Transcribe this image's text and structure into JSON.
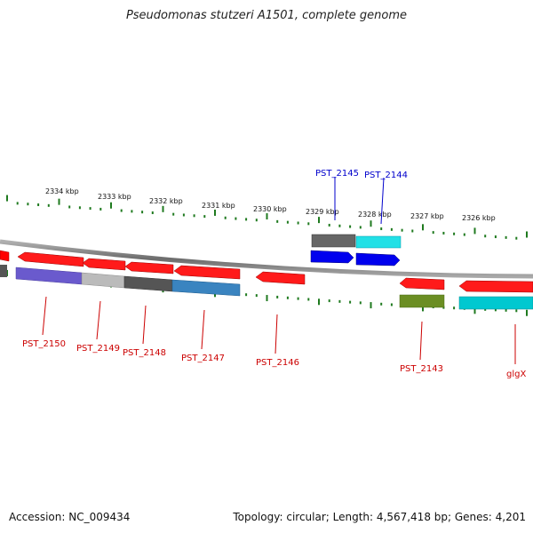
{
  "title": "Pseudomonas stutzeri A1501, complete genome",
  "footer": {
    "accession": "Accession: NC_009434",
    "summary": "Topology: circular; Length: 4,567,418 bp; Genes: 4,201"
  },
  "ruler": {
    "tick_color": "#1f7a1f",
    "labels": [
      "2334 kbp",
      "2333 kbp",
      "2332 kbp",
      "2331 kbp",
      "2330 kbp",
      "2329 kbp",
      "2328 kbp",
      "2327 kbp",
      "2326 kbp"
    ]
  },
  "genes_top": [
    {
      "label": "",
      "color": "#ff0000"
    },
    {
      "label": "",
      "color": "#ff0000"
    },
    {
      "label": "",
      "color": "#ff0000"
    },
    {
      "label": "",
      "color": "#ff0000"
    },
    {
      "label": "",
      "color": "#ff0000"
    },
    {
      "label": "",
      "color": "#ff0000"
    },
    {
      "label": "",
      "color": "#ff0000"
    },
    {
      "label": "",
      "color": "#ff0000"
    },
    {
      "label": "PST_2145",
      "color": "#0000ee"
    },
    {
      "label": "PST_2144",
      "color": "#0000ee"
    },
    {
      "label": "",
      "color": "#ff0000"
    }
  ],
  "genes_bottom": [
    {
      "label": "PST_2150",
      "color": "#6a5acd"
    },
    {
      "label": "PST_2149",
      "color": "#bbbbbb"
    },
    {
      "label": "PST_2148",
      "color": "#555555"
    },
    {
      "label": "PST_2147",
      "color": "#3a84c0"
    },
    {
      "label": "PST_2146",
      "color": "#ff0000"
    },
    {
      "label": "PST_2143",
      "color": "#6b8e23"
    },
    {
      "label": "glgX",
      "color": "#00c8d0"
    }
  ],
  "colors": {
    "label_red": "#cc0000",
    "label_blue": "#0000cc",
    "backbone": "#7a7a7a"
  }
}
